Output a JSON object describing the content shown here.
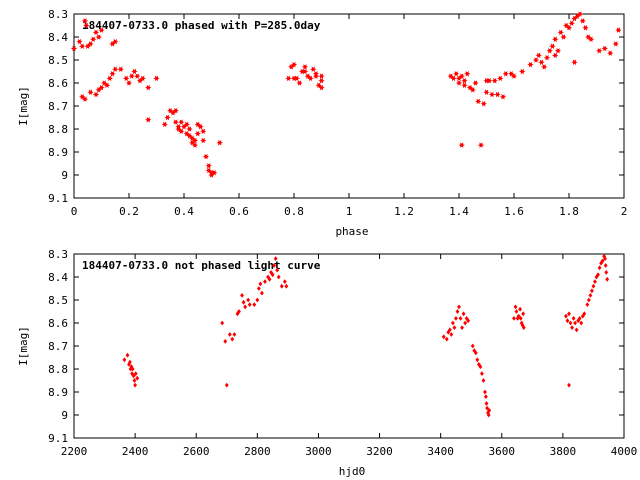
{
  "colors": {
    "point": "#ff0000",
    "frame": "#000000",
    "background": "#ffffff"
  },
  "chart_data": [
    {
      "type": "scatter",
      "title": "184407-0733.0 phased with P=285.0day",
      "xlabel": "phase",
      "ylabel": "I[mag]",
      "xlim": [
        0,
        2
      ],
      "ylim": [
        9.1,
        8.3
      ],
      "y_inverted": true,
      "grid": false,
      "xticks": [
        0,
        0.2,
        0.4,
        0.6,
        0.8,
        1,
        1.2,
        1.4,
        1.6,
        1.8,
        2
      ],
      "xtick_labels": [
        "0",
        "0.2",
        "0.4",
        "0.6",
        "0.8",
        "1",
        "1.2",
        "1.4",
        "1.6",
        "1.8",
        "2"
      ],
      "yticks": [
        8.3,
        8.4,
        8.5,
        8.6,
        8.7,
        8.8,
        8.9,
        9,
        9.1
      ],
      "ytick_labels": [
        "8.3",
        "8.4",
        "8.5",
        "8.6",
        "8.7",
        "8.8",
        "8.9",
        "9",
        "9.1"
      ],
      "marker": "star",
      "points": [
        [
          0.0,
          8.45
        ],
        [
          0.02,
          8.42
        ],
        [
          0.03,
          8.44
        ],
        [
          0.04,
          8.33
        ],
        [
          0.045,
          8.35
        ],
        [
          0.05,
          8.44
        ],
        [
          0.06,
          8.43
        ],
        [
          0.07,
          8.41
        ],
        [
          0.08,
          8.38
        ],
        [
          0.09,
          8.4
        ],
        [
          0.1,
          8.37
        ],
        [
          0.14,
          8.43
        ],
        [
          0.15,
          8.42
        ],
        [
          0.03,
          8.66
        ],
        [
          0.04,
          8.67
        ],
        [
          0.06,
          8.64
        ],
        [
          0.08,
          8.65
        ],
        [
          0.09,
          8.63
        ],
        [
          0.1,
          8.62
        ],
        [
          0.11,
          8.6
        ],
        [
          0.12,
          8.61
        ],
        [
          0.13,
          8.58
        ],
        [
          0.14,
          8.56
        ],
        [
          0.15,
          8.54
        ],
        [
          0.17,
          8.54
        ],
        [
          0.19,
          8.58
        ],
        [
          0.2,
          8.6
        ],
        [
          0.21,
          8.57
        ],
        [
          0.22,
          8.55
        ],
        [
          0.23,
          8.57
        ],
        [
          0.24,
          8.59
        ],
        [
          0.25,
          8.58
        ],
        [
          0.27,
          8.62
        ],
        [
          0.3,
          8.58
        ],
        [
          0.27,
          8.76
        ],
        [
          0.33,
          8.78
        ],
        [
          0.34,
          8.75
        ],
        [
          0.35,
          8.72
        ],
        [
          0.36,
          8.73
        ],
        [
          0.37,
          8.72
        ],
        [
          0.37,
          8.77
        ],
        [
          0.38,
          8.79
        ],
        [
          0.38,
          8.8
        ],
        [
          0.39,
          8.77
        ],
        [
          0.39,
          8.81
        ],
        [
          0.4,
          8.79
        ],
        [
          0.41,
          8.78
        ],
        [
          0.41,
          8.82
        ],
        [
          0.42,
          8.8
        ],
        [
          0.42,
          8.83
        ],
        [
          0.43,
          8.84
        ],
        [
          0.43,
          8.86
        ],
        [
          0.44,
          8.85
        ],
        [
          0.44,
          8.87
        ],
        [
          0.45,
          8.78
        ],
        [
          0.45,
          8.82
        ],
        [
          0.46,
          8.79
        ],
        [
          0.47,
          8.81
        ],
        [
          0.47,
          8.85
        ],
        [
          0.48,
          8.92
        ],
        [
          0.49,
          8.96
        ],
        [
          0.49,
          8.98
        ],
        [
          0.5,
          8.99
        ],
        [
          0.5,
          9.0
        ],
        [
          0.51,
          8.99
        ],
        [
          0.53,
          8.86
        ],
        [
          0.78,
          8.58
        ],
        [
          0.79,
          8.53
        ],
        [
          0.8,
          8.52
        ],
        [
          0.8,
          8.58
        ],
        [
          0.81,
          8.58
        ],
        [
          0.82,
          8.6
        ],
        [
          0.83,
          8.55
        ],
        [
          0.84,
          8.53
        ],
        [
          0.84,
          8.55
        ],
        [
          0.85,
          8.57
        ],
        [
          0.86,
          8.58
        ],
        [
          0.87,
          8.54
        ],
        [
          0.88,
          8.56
        ],
        [
          0.88,
          8.57
        ],
        [
          0.89,
          8.61
        ],
        [
          0.9,
          8.62
        ],
        [
          0.9,
          8.59
        ],
        [
          0.9,
          8.57
        ],
        [
          1.37,
          8.57
        ],
        [
          1.38,
          8.58
        ],
        [
          1.39,
          8.56
        ],
        [
          1.4,
          8.58
        ],
        [
          1.4,
          8.6
        ],
        [
          1.41,
          8.57
        ],
        [
          1.42,
          8.59
        ],
        [
          1.42,
          8.61
        ],
        [
          1.43,
          8.56
        ],
        [
          1.44,
          8.62
        ],
        [
          1.45,
          8.63
        ],
        [
          1.46,
          8.6
        ],
        [
          1.47,
          8.68
        ],
        [
          1.49,
          8.69
        ],
        [
          1.5,
          8.59
        ],
        [
          1.5,
          8.64
        ],
        [
          1.51,
          8.59
        ],
        [
          1.52,
          8.65
        ],
        [
          1.53,
          8.59
        ],
        [
          1.54,
          8.65
        ],
        [
          1.55,
          8.58
        ],
        [
          1.56,
          8.66
        ],
        [
          1.57,
          8.56
        ],
        [
          1.59,
          8.56
        ],
        [
          1.41,
          8.87
        ],
        [
          1.48,
          8.87
        ],
        [
          1.6,
          8.57
        ],
        [
          1.63,
          8.55
        ],
        [
          1.66,
          8.52
        ],
        [
          1.68,
          8.5
        ],
        [
          1.69,
          8.48
        ],
        [
          1.7,
          8.51
        ],
        [
          1.71,
          8.53
        ],
        [
          1.72,
          8.49
        ],
        [
          1.73,
          8.46
        ],
        [
          1.74,
          8.44
        ],
        [
          1.75,
          8.41
        ],
        [
          1.75,
          8.48
        ],
        [
          1.76,
          8.46
        ],
        [
          1.77,
          8.38
        ],
        [
          1.78,
          8.4
        ],
        [
          1.79,
          8.35
        ],
        [
          1.8,
          8.36
        ],
        [
          1.81,
          8.34
        ],
        [
          1.82,
          8.32
        ],
        [
          1.83,
          8.31
        ],
        [
          1.84,
          8.3
        ],
        [
          1.85,
          8.33
        ],
        [
          1.86,
          8.36
        ],
        [
          1.87,
          8.4
        ],
        [
          1.88,
          8.41
        ],
        [
          1.82,
          8.51
        ],
        [
          1.91,
          8.46
        ],
        [
          1.93,
          8.45
        ],
        [
          1.95,
          8.47
        ],
        [
          1.97,
          8.43
        ],
        [
          1.98,
          8.37
        ]
      ]
    },
    {
      "type": "scatter",
      "title": "184407-0733.0 not phased light curve",
      "xlabel": "hjd0",
      "ylabel": "I[mag]",
      "xlim": [
        2200,
        4000
      ],
      "ylim": [
        9.1,
        8.3
      ],
      "y_inverted": true,
      "grid": false,
      "xticks": [
        2200,
        2400,
        2600,
        2800,
        3000,
        3200,
        3400,
        3600,
        3800,
        4000
      ],
      "xtick_labels": [
        "2200",
        "2400",
        "2600",
        "2800",
        "3000",
        "3200",
        "3400",
        "3600",
        "3800",
        "4000"
      ],
      "yticks": [
        8.3,
        8.4,
        8.5,
        8.6,
        8.7,
        8.8,
        8.9,
        9,
        9.1
      ],
      "ytick_labels": [
        "8.3",
        "8.4",
        "8.5",
        "8.6",
        "8.7",
        "8.8",
        "8.9",
        "9",
        "9.1"
      ],
      "marker": "diamond",
      "points": [
        [
          2365,
          8.76
        ],
        [
          2375,
          8.74
        ],
        [
          2380,
          8.78
        ],
        [
          2383,
          8.77
        ],
        [
          2385,
          8.8
        ],
        [
          2388,
          8.79
        ],
        [
          2390,
          8.82
        ],
        [
          2392,
          8.8
        ],
        [
          2395,
          8.83
        ],
        [
          2398,
          8.85
        ],
        [
          2400,
          8.87
        ],
        [
          2402,
          8.82
        ],
        [
          2407,
          8.84
        ],
        [
          2685,
          8.6
        ],
        [
          2695,
          8.68
        ],
        [
          2700,
          8.87
        ],
        [
          2710,
          8.65
        ],
        [
          2718,
          8.67
        ],
        [
          2725,
          8.65
        ],
        [
          2735,
          8.56
        ],
        [
          2740,
          8.55
        ],
        [
          2750,
          8.48
        ],
        [
          2755,
          8.51
        ],
        [
          2760,
          8.53
        ],
        [
          2770,
          8.5
        ],
        [
          2775,
          8.52
        ],
        [
          2790,
          8.52
        ],
        [
          2800,
          8.5
        ],
        [
          2805,
          8.45
        ],
        [
          2810,
          8.43
        ],
        [
          2815,
          8.47
        ],
        [
          2825,
          8.42
        ],
        [
          2835,
          8.4
        ],
        [
          2840,
          8.41
        ],
        [
          2845,
          8.38
        ],
        [
          2850,
          8.39
        ],
        [
          2855,
          8.35
        ],
        [
          2860,
          8.32
        ],
        [
          2865,
          8.37
        ],
        [
          2870,
          8.4
        ],
        [
          2880,
          8.44
        ],
        [
          2890,
          8.42
        ],
        [
          2895,
          8.44
        ],
        [
          3410,
          8.66
        ],
        [
          3420,
          8.67
        ],
        [
          3425,
          8.64
        ],
        [
          3430,
          8.63
        ],
        [
          3435,
          8.65
        ],
        [
          3440,
          8.6
        ],
        [
          3445,
          8.62
        ],
        [
          3450,
          8.58
        ],
        [
          3455,
          8.55
        ],
        [
          3460,
          8.53
        ],
        [
          3465,
          8.58
        ],
        [
          3470,
          8.62
        ],
        [
          3475,
          8.56
        ],
        [
          3480,
          8.6
        ],
        [
          3485,
          8.58
        ],
        [
          3490,
          8.59
        ],
        [
          3505,
          8.7
        ],
        [
          3510,
          8.72
        ],
        [
          3515,
          8.73
        ],
        [
          3520,
          8.76
        ],
        [
          3525,
          8.78
        ],
        [
          3530,
          8.79
        ],
        [
          3535,
          8.82
        ],
        [
          3540,
          8.85
        ],
        [
          3545,
          8.9
        ],
        [
          3548,
          8.92
        ],
        [
          3550,
          8.95
        ],
        [
          3552,
          8.97
        ],
        [
          3555,
          8.99
        ],
        [
          3557,
          9.0
        ],
        [
          3559,
          8.98
        ],
        [
          3640,
          8.58
        ],
        [
          3645,
          8.53
        ],
        [
          3648,
          8.55
        ],
        [
          3652,
          8.58
        ],
        [
          3655,
          8.57
        ],
        [
          3660,
          8.54
        ],
        [
          3662,
          8.58
        ],
        [
          3665,
          8.6
        ],
        [
          3668,
          8.61
        ],
        [
          3670,
          8.56
        ],
        [
          3672,
          8.62
        ],
        [
          3810,
          8.57
        ],
        [
          3815,
          8.59
        ],
        [
          3820,
          8.56
        ],
        [
          3825,
          8.6
        ],
        [
          3830,
          8.62
        ],
        [
          3835,
          8.58
        ],
        [
          3840,
          8.6
        ],
        [
          3845,
          8.63
        ],
        [
          3850,
          8.59
        ],
        [
          3855,
          8.58
        ],
        [
          3860,
          8.6
        ],
        [
          3865,
          8.57
        ],
        [
          3870,
          8.56
        ],
        [
          3820,
          8.87
        ],
        [
          3880,
          8.52
        ],
        [
          3885,
          8.5
        ],
        [
          3890,
          8.48
        ],
        [
          3895,
          8.46
        ],
        [
          3900,
          8.44
        ],
        [
          3905,
          8.42
        ],
        [
          3910,
          8.4
        ],
        [
          3915,
          8.39
        ],
        [
          3920,
          8.36
        ],
        [
          3925,
          8.34
        ],
        [
          3930,
          8.33
        ],
        [
          3935,
          8.31
        ],
        [
          3938,
          8.32
        ],
        [
          3940,
          8.35
        ],
        [
          3942,
          8.38
        ],
        [
          3945,
          8.41
        ]
      ]
    }
  ]
}
